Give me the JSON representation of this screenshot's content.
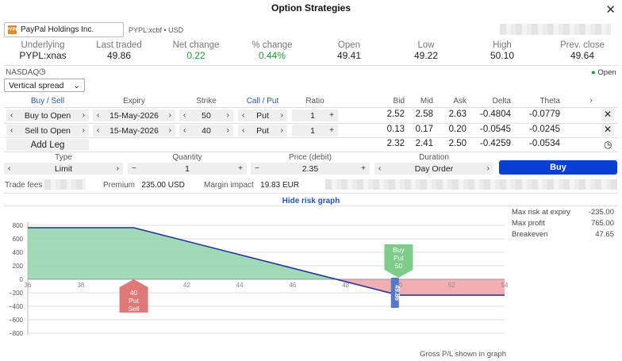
{
  "window": {
    "title": "Option Strategies"
  },
  "instrument": {
    "name": "PayPal Holdings Inc.",
    "logo_text": "PYPL",
    "code": "PYPL:xcbf • USD"
  },
  "quote": {
    "labels": [
      "Underlying",
      "Last traded",
      "Net change",
      "% change",
      "Open",
      "Low",
      "High",
      "Prev. close"
    ],
    "values": [
      "PYPL:xnas",
      "49.86",
      "0.22",
      "0.44%",
      "49.41",
      "49.22",
      "50.10",
      "49.64"
    ],
    "exchange": "NASDAQ",
    "status": "Open"
  },
  "strategy": {
    "selected": "Vertical spread"
  },
  "legs_table": {
    "headers": [
      "Buy / Sell",
      "Expiry",
      "Strike",
      "Call / Put",
      "Ratio",
      "Bid",
      "Mid",
      "Ask",
      "Delta",
      "Theta"
    ],
    "legs": [
      {
        "side": "Buy to Open",
        "expiry": "15-May-2026",
        "strike": "50",
        "type": "Put",
        "ratio": "1",
        "bid": "2.52",
        "mid": "2.58",
        "ask": "2.63",
        "delta": "-0.4804",
        "theta": "-0.0779"
      },
      {
        "side": "Sell to Open",
        "expiry": "15-May-2026",
        "strike": "40",
        "type": "Put",
        "ratio": "1",
        "bid": "0.13",
        "mid": "0.17",
        "ask": "0.20",
        "delta": "-0.0545",
        "theta": "-0.0245"
      }
    ],
    "add_leg_label": "Add Leg",
    "totals": {
      "bid": "2.32",
      "mid": "2.41",
      "ask": "2.50",
      "delta": "-0.4259",
      "theta": "-0.0534"
    }
  },
  "order": {
    "type_label": "Type",
    "type_value": "Limit",
    "quantity_label": "Quantity",
    "quantity_value": "1",
    "price_label": "Price (debit)",
    "price_value": "2.35",
    "duration_label": "Duration",
    "duration_value": "Day Order",
    "buy_label": "Buy"
  },
  "fees": {
    "trade_fees_label": "Trade fees",
    "premium_label": "Premium",
    "premium_value": "235.00 USD",
    "margin_label": "Margin impact",
    "margin_value": "19.83 EUR"
  },
  "risk": {
    "toggle_label": "Hide risk graph",
    "max_risk_label": "Max risk at expiry",
    "max_risk_value": "-235.00",
    "max_profit_label": "Max profit",
    "max_profit_value": "765.00",
    "breakeven_label": "Breakeven",
    "breakeven_value": "47.65",
    "footnote": "Gross P/L shown in graph"
  },
  "chart_data": {
    "type": "area",
    "x_ticks": [
      "36",
      "38",
      "40",
      "42",
      "44",
      "46",
      "48",
      "50",
      "52",
      "54"
    ],
    "y_ticks": [
      "800",
      "600",
      "400",
      "200",
      "0",
      "−200",
      "−400",
      "−600",
      "−800"
    ],
    "xlim": [
      36,
      54
    ],
    "ylim": [
      -800,
      800
    ],
    "payoff": [
      [
        36,
        765
      ],
      [
        40,
        765
      ],
      [
        47.65,
        0
      ],
      [
        50,
        -235
      ],
      [
        54,
        -235
      ]
    ],
    "markers": [
      {
        "strike": 40,
        "lines": [
          "40",
          "Put",
          "Sell"
        ],
        "color": "#e07878"
      },
      {
        "strike": 50,
        "lines": [
          "Buy",
          "Put",
          "50"
        ],
        "color": "#7ccc8a"
      }
    ],
    "current_price": {
      "x": 49.86,
      "label": "49.86",
      "color": "#5577cc"
    },
    "colors": {
      "profit": "#8fd3a9",
      "loss": "#f0a0a4",
      "line": "#1a2fa0"
    }
  }
}
